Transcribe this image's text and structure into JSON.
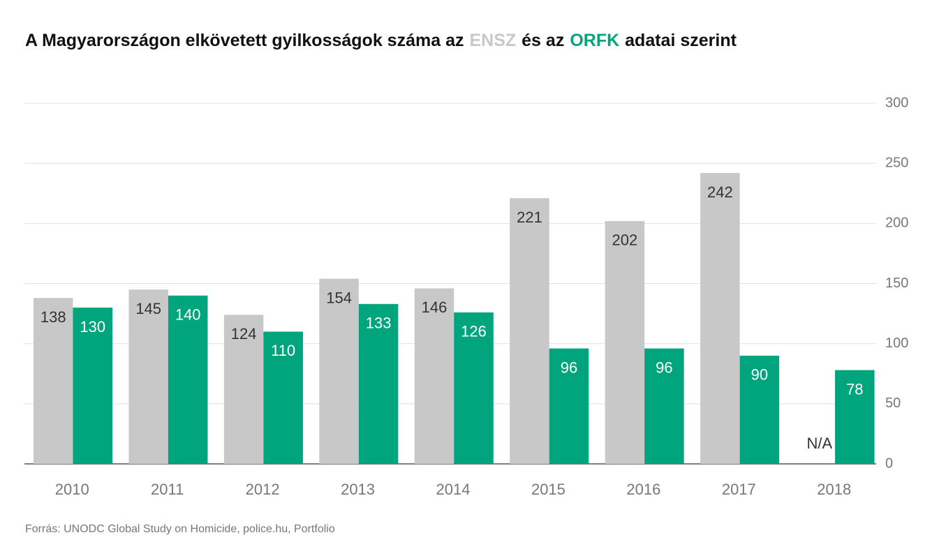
{
  "chart_data": {
    "type": "bar",
    "title_parts": [
      "A Magyarországon elkövetett gyilkosságok száma az",
      "és az",
      "adatai szerint"
    ],
    "source": "Forrás: UNODC Global Study on Homicide, police.hu, Portfolio",
    "categories": [
      "2010",
      "2011",
      "2012",
      "2013",
      "2014",
      "2015",
      "2016",
      "2017",
      "2018"
    ],
    "series": [
      {
        "name": "ENSZ",
        "color": "#c8c8c8",
        "values": [
          138,
          145,
          124,
          154,
          146,
          221,
          202,
          242,
          null
        ],
        "value_labels": [
          "138",
          "145",
          "124",
          "154",
          "146",
          "221",
          "202",
          "242",
          "N/A"
        ]
      },
      {
        "name": "ORFK",
        "color": "#00a57e",
        "values": [
          130,
          140,
          110,
          133,
          126,
          96,
          96,
          90,
          78
        ]
      }
    ],
    "ylim": [
      0,
      300
    ],
    "yticks": [
      0,
      50,
      100,
      150,
      200,
      250,
      300
    ],
    "grid": true,
    "y_axis_side": "right"
  }
}
